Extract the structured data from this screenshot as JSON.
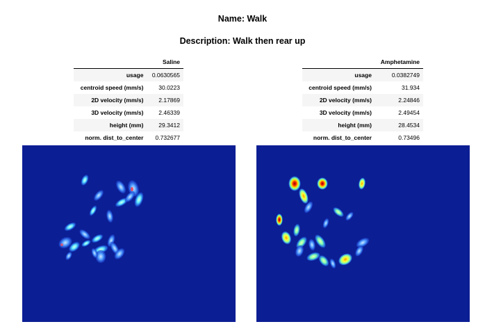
{
  "name_heading": "Name: Walk",
  "description_heading": "Description: Walk then rear up",
  "panels": [
    {
      "label": "Saline",
      "rows": [
        {
          "metric": "usage",
          "value": "0.0630565"
        },
        {
          "metric": "centroid speed (mm/s)",
          "value": "30.0223"
        },
        {
          "metric": "2D velocity (mm/s)",
          "value": "2.17869"
        },
        {
          "metric": "3D velocity (mm/s)",
          "value": "2.46339"
        },
        {
          "metric": "height (mm)",
          "value": "29.3412"
        },
        {
          "metric": "norm. dist_to_center",
          "value": "0.732677"
        }
      ]
    },
    {
      "label": "Amphetamine",
      "rows": [
        {
          "metric": "usage",
          "value": "0.0382749"
        },
        {
          "metric": "centroid speed (mm/s)",
          "value": "31.934"
        },
        {
          "metric": "2D velocity (mm/s)",
          "value": "2.24846"
        },
        {
          "metric": "3D velocity (mm/s)",
          "value": "2.49454"
        },
        {
          "metric": "height (mm)",
          "value": "28.4534"
        },
        {
          "metric": "norm. dist_to_center",
          "value": "0.73496"
        }
      ]
    }
  ],
  "colors": {
    "heatmap_background": "#0c1e94"
  }
}
